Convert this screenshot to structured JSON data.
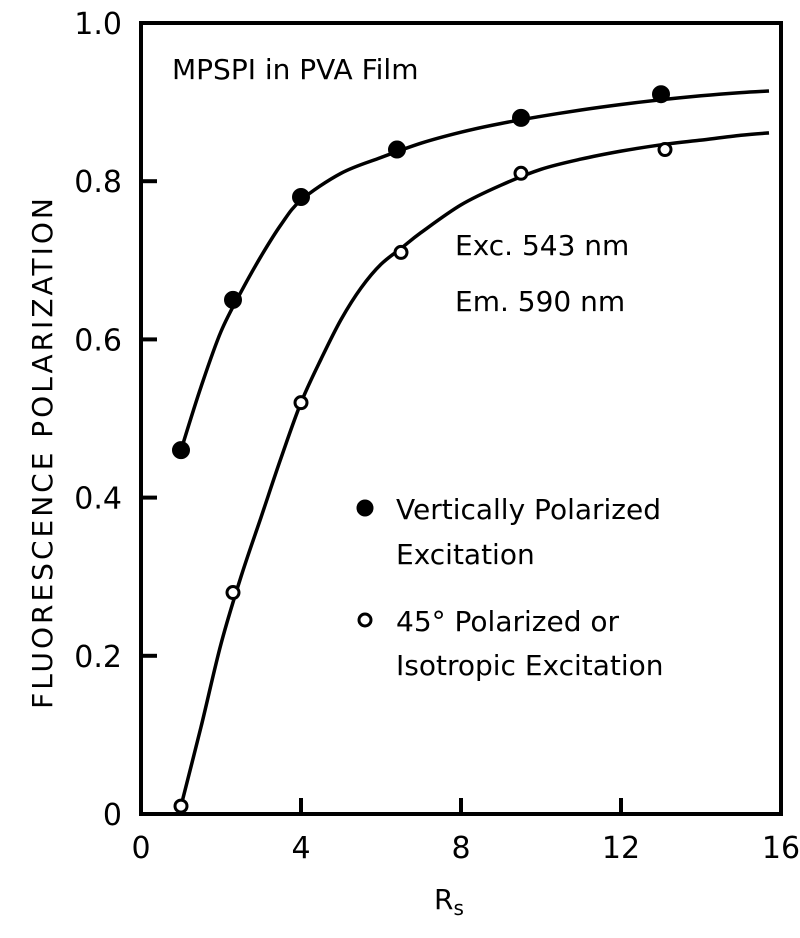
{
  "chart_data": {
    "type": "scatter",
    "title": "",
    "xlabel": "R",
    "xlabel_sub": "s",
    "ylabel": "FLUORESCENCE  POLARIZATION",
    "xlim": [
      0,
      16
    ],
    "ylim": [
      0,
      1.0
    ],
    "x_ticks": [
      0,
      4,
      8,
      12,
      16
    ],
    "x_tick_labels": [
      "0",
      "4",
      "8",
      "12",
      "16"
    ],
    "y_ticks": [
      0,
      0.2,
      0.4,
      0.6,
      0.8,
      1.0
    ],
    "y_tick_labels": [
      "0",
      "0.2",
      "0.4",
      "0.6",
      "0.8",
      "1.0"
    ],
    "grid": false,
    "legend_position": "lower-right",
    "annotations": {
      "sample": "MPSPI in  PVA Film",
      "exc": "Exc. 543 nm",
      "em": "Em. 590 nm"
    },
    "series": [
      {
        "name": "Vertically Polarized Excitation",
        "legend_line1": "Vertically  Polarized",
        "legend_line2": "Excitation",
        "marker": "filled-circle",
        "x": [
          1.0,
          2.3,
          4.0,
          6.4,
          9.5,
          13.0
        ],
        "y": [
          0.46,
          0.65,
          0.78,
          0.84,
          0.88,
          0.91
        ],
        "curve_x": [
          1.0,
          1.5,
          2.0,
          2.5,
          3.0,
          3.5,
          4.0,
          5.0,
          6.0,
          7.0,
          8.0,
          9.0,
          10.0,
          11.0,
          12.0,
          13.0,
          14.0,
          15.0,
          15.7
        ],
        "curve_y": [
          0.46,
          0.54,
          0.61,
          0.66,
          0.705,
          0.745,
          0.776,
          0.81,
          0.83,
          0.848,
          0.862,
          0.873,
          0.882,
          0.89,
          0.897,
          0.903,
          0.908,
          0.912,
          0.914
        ]
      },
      {
        "name": "45° Polarized or Isotropic Excitation",
        "legend_line1": "45° Polarized  or",
        "legend_line2": "Isotropic Excitation",
        "marker": "open-circle",
        "x": [
          1.0,
          2.3,
          4.0,
          6.5,
          9.5,
          13.1
        ],
        "y": [
          0.01,
          0.28,
          0.52,
          0.71,
          0.81,
          0.84
        ],
        "curve_x": [
          1.0,
          1.5,
          2.0,
          2.5,
          3.0,
          3.5,
          4.0,
          4.5,
          5.0,
          5.5,
          6.0,
          6.5,
          7.0,
          8.0,
          9.0,
          10.0,
          11.0,
          12.0,
          13.0,
          14.0,
          15.0,
          15.7
        ],
        "curve_y": [
          0.01,
          0.11,
          0.215,
          0.3,
          0.375,
          0.45,
          0.52,
          0.575,
          0.625,
          0.665,
          0.695,
          0.715,
          0.735,
          0.77,
          0.795,
          0.815,
          0.828,
          0.838,
          0.846,
          0.852,
          0.858,
          0.861
        ]
      }
    ]
  }
}
